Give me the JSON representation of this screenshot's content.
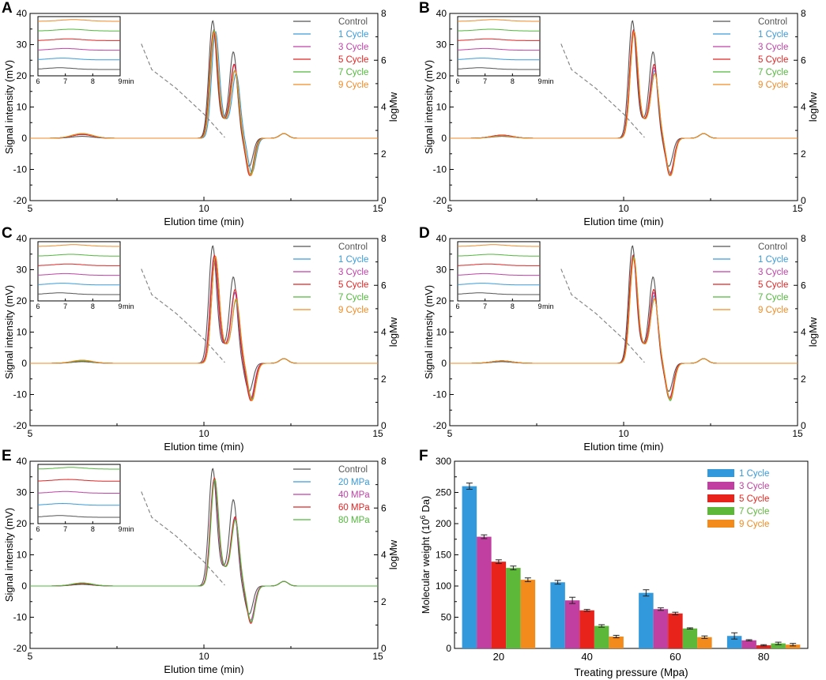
{
  "chart_data": [
    {
      "panel": "A",
      "type": "line",
      "xlabel": "Elution time (min)",
      "ylabel": "Signal intensity (mV)",
      "y2label": "logMw",
      "xlim": [
        5,
        15
      ],
      "ylim": [
        -20,
        40
      ],
      "y2lim": [
        0,
        8
      ],
      "xticks": [
        "5",
        "10",
        "15"
      ],
      "yticks": [
        "-20",
        "-10",
        "0",
        "10",
        "20",
        "30",
        "40"
      ],
      "y2ticks": [
        "0",
        "2",
        "4",
        "6",
        "8"
      ],
      "series": [
        {
          "name": "Control",
          "color": "#555555",
          "peak1": 37,
          "peak2": 27,
          "trough": -9,
          "small1": 0.6,
          "offset": 0.0
        },
        {
          "name": "1 Cycle",
          "color": "#3a9ad9",
          "peak1": 33.5,
          "peak2": 20,
          "trough": -11,
          "small1": 1.2,
          "offset": 0.08
        },
        {
          "name": "3 Cycle",
          "color": "#c042a8",
          "peak1": 34,
          "peak2": 23,
          "trough": -11.5,
          "small1": 1.2,
          "offset": 0.03
        },
        {
          "name": "5 Cycle",
          "color": "#e02424",
          "peak1": 33.5,
          "peak2": 23,
          "trough": -12,
          "small1": 1.2,
          "offset": 0.02
        },
        {
          "name": "7 Cycle",
          "color": "#52b83c",
          "peak1": 34,
          "peak2": 21,
          "trough": -11.5,
          "small1": 1.5,
          "offset": 0.04
        },
        {
          "name": "9 Cycle",
          "color": "#f08a24",
          "peak1": 33.5,
          "peak2": 21,
          "trough": -12,
          "small1": 1.5,
          "offset": 0.05
        }
      ],
      "calibration": [
        [
          8.2,
          6.7
        ],
        [
          8.5,
          5.6
        ],
        [
          9.2,
          4.8
        ],
        [
          10.0,
          3.7
        ],
        [
          10.6,
          2.7
        ]
      ],
      "inset": {
        "xticks": [
          "6",
          "7",
          "8",
          "9"
        ],
        "unit": "min"
      }
    },
    {
      "panel": "B",
      "type": "line",
      "xlabel": "Elution time (min)",
      "ylabel": "Signal intensity (mV)",
      "y2label": "logMw",
      "xlim": [
        5,
        15
      ],
      "ylim": [
        -20,
        40
      ],
      "y2lim": [
        0,
        8
      ],
      "xticks": [
        "5",
        "10",
        "15"
      ],
      "yticks": [
        "-20",
        "-10",
        "0",
        "10",
        "20",
        "30",
        "40"
      ],
      "y2ticks": [
        "0",
        "2",
        "4",
        "6",
        "8"
      ],
      "series": [
        {
          "name": "Control",
          "color": "#555555",
          "peak1": 37,
          "peak2": 27,
          "trough": -9,
          "small1": 0.6,
          "offset": 0.0
        },
        {
          "name": "1 Cycle",
          "color": "#3a9ad9",
          "peak1": 34,
          "peak2": 21,
          "trough": -11,
          "small1": 1.0,
          "offset": 0.04
        },
        {
          "name": "3 Cycle",
          "color": "#c042a8",
          "peak1": 33.5,
          "peak2": 22,
          "trough": -11.5,
          "small1": 1.0,
          "offset": 0.03
        },
        {
          "name": "5 Cycle",
          "color": "#e02424",
          "peak1": 34,
          "peak2": 23,
          "trough": -12,
          "small1": 1.0,
          "offset": 0.03
        },
        {
          "name": "7 Cycle",
          "color": "#52b83c",
          "peak1": 33.5,
          "peak2": 20,
          "trough": -12,
          "small1": 0.8,
          "offset": 0.05
        },
        {
          "name": "9 Cycle",
          "color": "#f08a24",
          "peak1": 33.5,
          "peak2": 20,
          "trough": -12,
          "small1": 0.8,
          "offset": 0.05
        }
      ],
      "calibration": [
        [
          8.2,
          6.7
        ],
        [
          8.5,
          5.6
        ],
        [
          9.2,
          4.8
        ],
        [
          10.0,
          3.7
        ],
        [
          10.6,
          2.7
        ]
      ],
      "inset": {
        "xticks": [
          "6",
          "7",
          "8",
          "9"
        ],
        "unit": "min"
      }
    },
    {
      "panel": "C",
      "type": "line",
      "xlabel": "Elution time (min)",
      "ylabel": "Signal intensity (mV)",
      "y2label": "logMw",
      "xlim": [
        5,
        15
      ],
      "ylim": [
        -20,
        40
      ],
      "y2lim": [
        0,
        8
      ],
      "xticks": [
        "5",
        "10",
        "15"
      ],
      "yticks": [
        "-20",
        "-10",
        "0",
        "10",
        "20",
        "30",
        "40"
      ],
      "y2ticks": [
        "0",
        "2",
        "4",
        "6",
        "8"
      ],
      "series": [
        {
          "name": "Control",
          "color": "#555555",
          "peak1": 37,
          "peak2": 27,
          "trough": -9,
          "small1": 0.5,
          "offset": 0.0
        },
        {
          "name": "1 Cycle",
          "color": "#3a9ad9",
          "peak1": 33.5,
          "peak2": 22,
          "trough": -11,
          "small1": 0.8,
          "offset": 0.05
        },
        {
          "name": "3 Cycle",
          "color": "#c042a8",
          "peak1": 33.5,
          "peak2": 22,
          "trough": -11.5,
          "small1": 0.8,
          "offset": 0.04
        },
        {
          "name": "5 Cycle",
          "color": "#e02424",
          "peak1": 34,
          "peak2": 23,
          "trough": -12,
          "small1": 0.8,
          "offset": 0.05
        },
        {
          "name": "7 Cycle",
          "color": "#52b83c",
          "peak1": 33.5,
          "peak2": 19.5,
          "trough": -11.5,
          "small1": 0.8,
          "offset": 0.08
        },
        {
          "name": "9 Cycle",
          "color": "#f08a24",
          "peak1": 33.5,
          "peak2": 20,
          "trough": -12,
          "small1": 1.0,
          "offset": 0.08
        }
      ],
      "calibration": [
        [
          8.2,
          6.7
        ],
        [
          8.5,
          5.6
        ],
        [
          9.2,
          4.8
        ],
        [
          10.0,
          3.7
        ],
        [
          10.6,
          2.7
        ]
      ],
      "inset": {
        "xticks": [
          "6",
          "7",
          "8",
          "9"
        ],
        "unit": "min"
      }
    },
    {
      "panel": "D",
      "type": "line",
      "xlabel": "Elution time (min)",
      "ylabel": "Signal intensity (mV)",
      "y2label": "logMw",
      "xlim": [
        5,
        15
      ],
      "ylim": [
        -20,
        40
      ],
      "y2lim": [
        0,
        8
      ],
      "xticks": [
        "5",
        "10",
        "15"
      ],
      "yticks": [
        "-20",
        "-10",
        "0",
        "10",
        "20",
        "30",
        "40"
      ],
      "y2ticks": [
        "0",
        "2",
        "4",
        "6",
        "8"
      ],
      "series": [
        {
          "name": "Control",
          "color": "#555555",
          "peak1": 37,
          "peak2": 27,
          "trough": -9,
          "small1": 0.5,
          "offset": 0.0
        },
        {
          "name": "1 Cycle",
          "color": "#3a9ad9",
          "peak1": 34,
          "peak2": 21,
          "trough": -11,
          "small1": 0.8,
          "offset": 0.03
        },
        {
          "name": "3 Cycle",
          "color": "#c042a8",
          "peak1": 33.5,
          "peak2": 22,
          "trough": -11,
          "small1": 0.8,
          "offset": 0.02
        },
        {
          "name": "5 Cycle",
          "color": "#e02424",
          "peak1": 34,
          "peak2": 23,
          "trough": -11.5,
          "small1": 0.8,
          "offset": 0.02
        },
        {
          "name": "7 Cycle",
          "color": "#52b83c",
          "peak1": 33.5,
          "peak2": 20,
          "trough": -12,
          "small1": 0.8,
          "offset": 0.04
        },
        {
          "name": "9 Cycle",
          "color": "#f08a24",
          "peak1": 33,
          "peak2": 20,
          "trough": -11.5,
          "small1": 0.8,
          "offset": 0.04
        }
      ],
      "calibration": [
        [
          8.2,
          6.7
        ],
        [
          8.5,
          5.6
        ],
        [
          9.2,
          4.8
        ],
        [
          10.0,
          3.7
        ],
        [
          10.6,
          2.7
        ]
      ],
      "inset": {
        "xticks": [
          "6",
          "7",
          "8",
          "9"
        ],
        "unit": "min"
      }
    },
    {
      "panel": "E",
      "type": "line",
      "xlabel": "Elution time (min)",
      "ylabel": "Signal intensity (mV)",
      "y2label": "logMw",
      "xlim": [
        5,
        15
      ],
      "ylim": [
        -20,
        40
      ],
      "y2lim": [
        0,
        8
      ],
      "xticks": [
        "5",
        "10",
        "15"
      ],
      "yticks": [
        "-20",
        "-10",
        "0",
        "10",
        "20",
        "30",
        "40"
      ],
      "y2ticks": [
        "0",
        "2",
        "4",
        "6",
        "8"
      ],
      "series": [
        {
          "name": "Control",
          "color": "#555555",
          "peak1": 37,
          "peak2": 27,
          "trough": -9,
          "small1": 0.5,
          "offset": 0.0
        },
        {
          "name": "20 MPa",
          "color": "#3a9ad9",
          "peak1": 33.5,
          "peak2": 21,
          "trough": -11.5,
          "small1": 0.8,
          "offset": 0.05
        },
        {
          "name": "40 MPa",
          "color": "#c042a8",
          "peak1": 33.5,
          "peak2": 21,
          "trough": -11,
          "small1": 0.9,
          "offset": 0.04
        },
        {
          "name": "60 MPa",
          "color": "#e02424",
          "peak1": 34,
          "peak2": 21.5,
          "trough": -12,
          "small1": 0.8,
          "offset": 0.05
        },
        {
          "name": "80 MPa",
          "color": "#52b83c",
          "peak1": 33.5,
          "peak2": 20.5,
          "trough": -11.5,
          "small1": 1.0,
          "offset": 0.06
        }
      ],
      "calibration": [
        [
          8.2,
          6.7
        ],
        [
          8.5,
          5.6
        ],
        [
          9.2,
          4.8
        ],
        [
          10.0,
          3.7
        ],
        [
          10.6,
          2.7
        ]
      ],
      "inset": {
        "xticks": [
          "6",
          "7",
          "8",
          "9"
        ],
        "unit": "min"
      }
    },
    {
      "panel": "F",
      "type": "bar",
      "xlabel": "Treating pressure (Mpa)",
      "ylabel_prefix": "Molecular weight (10",
      "ylabel_exp": "6",
      "ylabel_suffix": " Da)",
      "ylim": [
        0,
        300
      ],
      "yticks": [
        "0",
        "50",
        "100",
        "150",
        "200",
        "250",
        "300"
      ],
      "categories": [
        "20",
        "40",
        "60",
        "80"
      ],
      "series": [
        {
          "name": "1 Cycle",
          "color": "#3399dd",
          "values": [
            260,
            106,
            89,
            20
          ],
          "errors": [
            5,
            3,
            5,
            5
          ]
        },
        {
          "name": "3 Cycle",
          "color": "#c13fa0",
          "values": [
            179,
            77,
            63,
            13
          ],
          "errors": [
            3,
            5,
            2,
            1
          ]
        },
        {
          "name": "5 Cycle",
          "color": "#e8231c",
          "values": [
            139,
            61,
            56,
            5
          ],
          "errors": [
            3,
            1.5,
            2,
            1
          ]
        },
        {
          "name": "7 Cycle",
          "color": "#5db83a",
          "values": [
            129,
            36,
            32,
            8
          ],
          "errors": [
            3,
            2,
            1,
            2
          ]
        },
        {
          "name": "9 Cycle",
          "color": "#f28a1c",
          "values": [
            110,
            19,
            18,
            6
          ],
          "errors": [
            3,
            2,
            2,
            2
          ]
        }
      ]
    }
  ]
}
